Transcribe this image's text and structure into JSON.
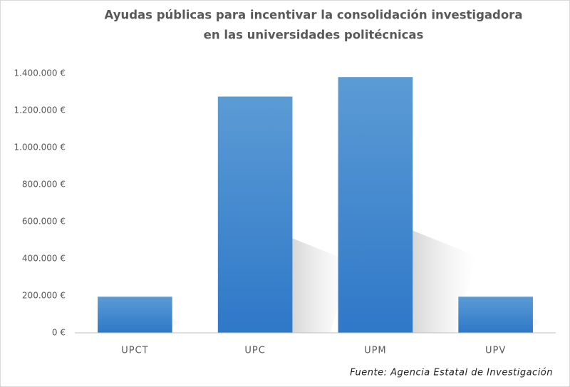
{
  "chart_data": {
    "type": "bar",
    "title": [
      "Ayudas públicas para incentivar la consolidación investigadora",
      "en las universidades politécnicas"
    ],
    "categories": [
      "UPCT",
      "UPC",
      "UPM",
      "UPV"
    ],
    "values": [
      195000,
      1275000,
      1380000,
      195000
    ],
    "color": "#4a8fd6",
    "ylim": [
      0,
      1400000
    ],
    "yticks": [
      {
        "value": 0,
        "label": "0 €"
      },
      {
        "value": 200000,
        "label": "200.000 €"
      },
      {
        "value": 400000,
        "label": "400.000 €"
      },
      {
        "value": 600000,
        "label": "600.000 €"
      },
      {
        "value": 800000,
        "label": "800.000 €"
      },
      {
        "value": 1000000,
        "label": "1.000.000 €"
      },
      {
        "value": 1200000,
        "label": "1.200.000 €"
      },
      {
        "value": 1400000,
        "label": "1.400.000 €"
      }
    ],
    "grid": false,
    "source": "Fuente: Agencia Estatal de Investigación"
  }
}
